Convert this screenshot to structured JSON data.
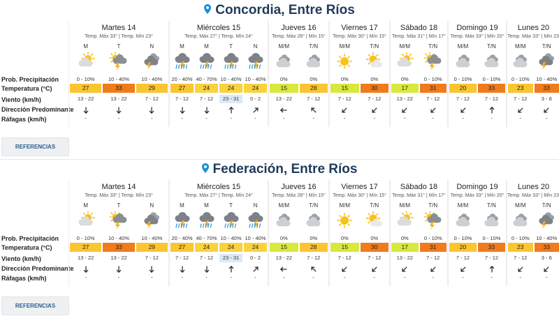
{
  "row_labels": {
    "prob": "Prob. Precipitación",
    "temp": "Temperatura (°C)",
    "wind": "Viento (km/h)",
    "dir": "Dirección Predominante",
    "gust": "Ráfagas (km/h)"
  },
  "colors": {
    "temp_yellow": "#fbc531",
    "temp_orange": "#f07b1d",
    "temp_light": "#f9d33f",
    "temp_green": "#d8e83c",
    "wind_highlight": "#dbe9f6",
    "title": "#1f3b5a",
    "pin": "#1a8fd8"
  },
  "cities": [
    {
      "title": "Concordia, Entre Ríos",
      "references_label": "REFERENCIAS",
      "days": [
        {
          "name": "Martes 14",
          "temps": "Temp. Máx 33° | Temp. Mín 23°",
          "periods": [
            {
              "label": "M",
              "icon": "partly-cloudy-day-icon",
              "prob": "0 - 10%",
              "temp": "27",
              "temp_color": "yellow",
              "wind": "13 - 22",
              "dir": "S",
              "gust": "-"
            },
            {
              "label": "T",
              "icon": "storm-sun-icon",
              "prob": "10 - 40%",
              "temp": "33",
              "temp_color": "orange",
              "wind": "13 - 22",
              "dir": "S",
              "gust": "-"
            },
            {
              "label": "N",
              "icon": "storm-cloud-icon",
              "prob": "10 - 40%",
              "temp": "29",
              "temp_color": "yellow",
              "wind": "7 - 12",
              "dir": "S",
              "gust": "-"
            }
          ]
        },
        {
          "name": "Miércoles 15",
          "temps": "Temp. Máx 27° | Temp. Mín 24°",
          "periods": [
            {
              "label": "M",
              "icon": "storm-rain-icon",
              "prob": "20 - 40%",
              "temp": "27",
              "temp_color": "yellow",
              "wind": "7 - 12",
              "dir": "S",
              "gust": "-"
            },
            {
              "label": "M",
              "icon": "storm-rain-icon",
              "prob": "40 - 70%",
              "temp": "24",
              "temp_color": "light",
              "wind": "7 - 12",
              "dir": "S",
              "gust": "-"
            },
            {
              "label": "T",
              "icon": "storm-rain-icon",
              "prob": "10 - 40%",
              "temp": "24",
              "temp_color": "light",
              "wind": "23 - 31",
              "wind_hl": true,
              "dir": "N",
              "gust": "-"
            },
            {
              "label": "N",
              "icon": "storm-rain-icon",
              "prob": "10 - 40%",
              "temp": "24",
              "temp_color": "light",
              "wind": "0 - 2",
              "dir": "NE",
              "gust": "-"
            }
          ]
        },
        {
          "name": "Jueves 16",
          "temps": "Temp. Máx 28° | Mín 15°",
          "periods": [
            {
              "label": "M/M",
              "icon": "cloudy-icon",
              "prob": "0%",
              "temp": "15",
              "temp_color": "green",
              "wind": "13 - 22",
              "dir": "W",
              "gust": "-"
            },
            {
              "label": "T/N",
              "icon": "cloudy-icon",
              "prob": "0%",
              "temp": "28",
              "temp_color": "yellow",
              "wind": "7 - 12",
              "dir": "NW",
              "gust": "-"
            }
          ]
        },
        {
          "name": "Viernes 17",
          "temps": "Temp. Máx 30° | Mín 15°",
          "periods": [
            {
              "label": "M/M",
              "icon": "sunny-icon",
              "prob": "0%",
              "temp": "15",
              "temp_color": "green",
              "wind": "7 - 12",
              "dir": "SW",
              "gust": "-"
            },
            {
              "label": "T/N",
              "icon": "partly-sunny-icon",
              "prob": "0%",
              "temp": "30",
              "temp_color": "orange",
              "wind": "7 - 12",
              "dir": "SW",
              "gust": "-"
            }
          ]
        },
        {
          "name": "Sábado 18",
          "temps": "Temp. Máx 31° | Mín 17°",
          "periods": [
            {
              "label": "M/M",
              "icon": "partly-cloudy-day-icon",
              "prob": "0%",
              "temp": "17",
              "temp_color": "green",
              "wind": "13 - 22",
              "dir": "SW",
              "gust": "-"
            },
            {
              "label": "T/N",
              "icon": "storm-sun-icon",
              "prob": "0 - 10%",
              "temp": "31",
              "temp_color": "orange",
              "wind": "7 - 12",
              "dir": "SW",
              "gust": "-"
            }
          ]
        },
        {
          "name": "Domingo 19",
          "temps": "Temp. Máx 33° | Mín 20°",
          "periods": [
            {
              "label": "M/M",
              "icon": "cloudy-icon",
              "prob": "0 - 10%",
              "temp": "20",
              "temp_color": "yellow",
              "wind": "7 - 12",
              "dir": "SW",
              "gust": "-"
            },
            {
              "label": "T/N",
              "icon": "cloudy-icon",
              "prob": "0 - 10%",
              "temp": "33",
              "temp_color": "orange",
              "wind": "7 - 12",
              "dir": "N",
              "gust": "-"
            }
          ]
        },
        {
          "name": "Lunes 20",
          "temps": "Temp. Máx 33° | Mín 23°",
          "periods": [
            {
              "label": "M/M",
              "icon": "cloudy-icon",
              "prob": "0 - 10%",
              "temp": "23",
              "temp_color": "yellow",
              "wind": "7 - 12",
              "dir": "SW",
              "gust": "-"
            },
            {
              "label": "T/N",
              "icon": "storm-cloud-icon",
              "prob": "10 - 40%",
              "temp": "33",
              "temp_color": "orange",
              "wind": "3 - 6",
              "dir": "SW",
              "gust": "-"
            }
          ]
        }
      ]
    },
    {
      "title": "Federación, Entre Ríos",
      "references_label": "REFERENCIAS",
      "days": [
        {
          "name": "Martes 14",
          "temps": "Temp. Máx 33° | Temp. Mín 23°",
          "periods": [
            {
              "label": "M",
              "icon": "partly-cloudy-day-icon",
              "prob": "0 - 10%",
              "temp": "27",
              "temp_color": "yellow",
              "wind": "13 - 22",
              "dir": "S",
              "gust": "-"
            },
            {
              "label": "T",
              "icon": "storm-sun-icon",
              "prob": "10 - 40%",
              "temp": "33",
              "temp_color": "orange",
              "wind": "13 - 22",
              "dir": "S",
              "gust": "-"
            },
            {
              "label": "N",
              "icon": "storm-cloud-icon",
              "prob": "10 - 40%",
              "temp": "29",
              "temp_color": "yellow",
              "wind": "7 - 12",
              "dir": "S",
              "gust": "-"
            }
          ]
        },
        {
          "name": "Miércoles 15",
          "temps": "Temp. Máx 27° | Temp. Mín 24°",
          "periods": [
            {
              "label": "M",
              "icon": "storm-rain-icon",
              "prob": "20 - 40%",
              "temp": "27",
              "temp_color": "yellow",
              "wind": "7 - 12",
              "dir": "S",
              "gust": "-"
            },
            {
              "label": "M",
              "icon": "storm-rain-icon",
              "prob": "40 - 70%",
              "temp": "24",
              "temp_color": "light",
              "wind": "7 - 12",
              "dir": "S",
              "gust": "-"
            },
            {
              "label": "T",
              "icon": "storm-rain-icon",
              "prob": "10 - 40%",
              "temp": "24",
              "temp_color": "light",
              "wind": "23 - 31",
              "wind_hl": true,
              "dir": "N",
              "gust": "-"
            },
            {
              "label": "N",
              "icon": "storm-rain-icon",
              "prob": "10 - 40%",
              "temp": "24",
              "temp_color": "light",
              "wind": "0 - 2",
              "dir": "NE",
              "gust": "-"
            }
          ]
        },
        {
          "name": "Jueves 16",
          "temps": "Temp. Máx 28° | Mín 15°",
          "periods": [
            {
              "label": "M/M",
              "icon": "cloudy-icon",
              "prob": "0%",
              "temp": "15",
              "temp_color": "green",
              "wind": "13 - 22",
              "dir": "W",
              "gust": "-"
            },
            {
              "label": "T/N",
              "icon": "cloudy-icon",
              "prob": "0%",
              "temp": "28",
              "temp_color": "yellow",
              "wind": "7 - 12",
              "dir": "NW",
              "gust": "-"
            }
          ]
        },
        {
          "name": "Viernes 17",
          "temps": "Temp. Máx 30° | Mín 15°",
          "periods": [
            {
              "label": "M/M",
              "icon": "sunny-icon",
              "prob": "0%",
              "temp": "15",
              "temp_color": "green",
              "wind": "7 - 12",
              "dir": "SW",
              "gust": "-"
            },
            {
              "label": "T/N",
              "icon": "partly-sunny-icon",
              "prob": "0%",
              "temp": "30",
              "temp_color": "orange",
              "wind": "7 - 12",
              "dir": "SW",
              "gust": "-"
            }
          ]
        },
        {
          "name": "Sábado 18",
          "temps": "Temp. Máx 31° | Mín 17°",
          "periods": [
            {
              "label": "M/M",
              "icon": "partly-cloudy-day-icon",
              "prob": "0%",
              "temp": "17",
              "temp_color": "green",
              "wind": "13 - 22",
              "dir": "SW",
              "gust": "-"
            },
            {
              "label": "T/N",
              "icon": "storm-sun-icon",
              "prob": "0 - 10%",
              "temp": "31",
              "temp_color": "orange",
              "wind": "7 - 12",
              "dir": "SW",
              "gust": "-"
            }
          ]
        },
        {
          "name": "Domingo 19",
          "temps": "Temp. Máx 33° | Mín 20°",
          "periods": [
            {
              "label": "M/M",
              "icon": "cloudy-icon",
              "prob": "0 - 10%",
              "temp": "20",
              "temp_color": "yellow",
              "wind": "7 - 12",
              "dir": "SW",
              "gust": "-"
            },
            {
              "label": "T/N",
              "icon": "cloudy-icon",
              "prob": "0 - 10%",
              "temp": "33",
              "temp_color": "orange",
              "wind": "7 - 12",
              "dir": "N",
              "gust": "-"
            }
          ]
        },
        {
          "name": "Lunes 20",
          "temps": "Temp. Máx 33° | Mín 23°",
          "periods": [
            {
              "label": "M/M",
              "icon": "cloudy-icon",
              "prob": "0 - 10%",
              "temp": "23",
              "temp_color": "yellow",
              "wind": "7 - 12",
              "dir": "SW",
              "gust": "-"
            },
            {
              "label": "T/N",
              "icon": "storm-cloud-icon",
              "prob": "10 - 40%",
              "temp": "33",
              "temp_color": "orange",
              "wind": "3 - 6",
              "dir": "SW",
              "gust": "-"
            }
          ]
        }
      ]
    }
  ]
}
